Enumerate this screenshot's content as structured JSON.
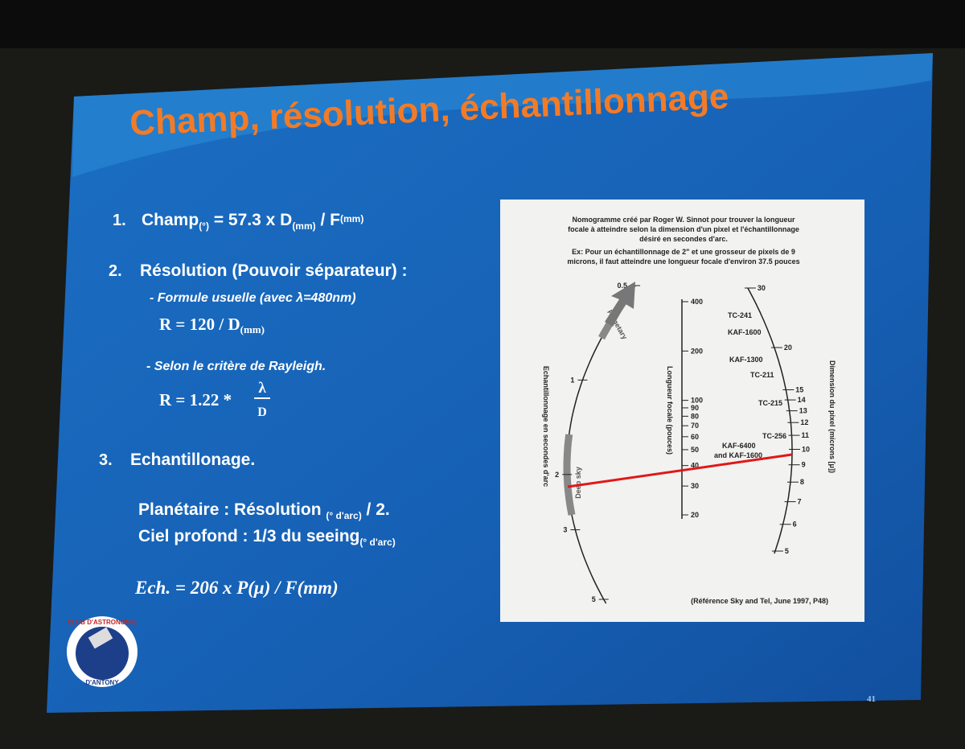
{
  "title": "Champ, résolution, échantillonnage",
  "items": [
    {
      "number": "1.",
      "formula": [
        {
          "text": "Champ",
          "sub": "(°)"
        },
        {
          "text": " = 57.3 x D",
          "sub": "(mm)"
        },
        {
          "text": " / F",
          "sub": "(mm)"
        }
      ]
    },
    {
      "number": "2.",
      "heading": "Résolution (Pouvoir séparateur) :",
      "methods": [
        {
          "label": "- Formule usuelle (avec λ=480nm)",
          "formula": {
            "text": "R = 120 / D",
            "sub": "(mm)"
          }
        },
        {
          "label": "- Selon le critère de Rayleigh.",
          "formula": {
            "text": "R = 1.22 *",
            "numerator": "λ",
            "denominator": "D"
          }
        }
      ]
    },
    {
      "number": "3.",
      "heading": "Echantillonage.",
      "lines": [
        [
          {
            "text": "Planétaire : Résolution ",
            "sub": "(° d'arc)"
          },
          {
            "text": " / 2."
          }
        ],
        [
          {
            "text": "Ciel profond : 1/3 du seeing",
            "sub": "(° d'arc)"
          }
        ]
      ],
      "equation": "Ech. = 206 x P(μ) / F(mm)"
    }
  ],
  "nomogram": {
    "caption": [
      "Nomogramme créé par Roger W. Sinnot pour trouver la longueur",
      "focale à atteindre selon la dimension d'un pixel et l'échantillonnage",
      "désiré en secondes d'arc.",
      "Ex: Pour un échantillonnage de 2\" et une grosseur de pixels de 9",
      "microns, il faut atteindre une longueur focale d'environ 37.5 pouces"
    ],
    "left_scale": {
      "label": "Echantillonnage en secondes d'arc",
      "ticks": [
        0.5,
        1,
        2,
        3,
        5
      ],
      "bands": [
        "Planetary",
        "Deep sky"
      ]
    },
    "middle_scale": {
      "label": "Longueur focale (pouces)",
      "ticks": [
        400,
        200,
        100,
        90,
        80,
        70,
        60,
        50,
        40,
        30,
        20
      ]
    },
    "right_scale": {
      "label": "Dimension du pixel (microns [μ])",
      "ticks": [
        30,
        20,
        15,
        14,
        13,
        12,
        11,
        10,
        9,
        8,
        7,
        6,
        5
      ],
      "sensors": [
        "TC-241",
        "KAF-1600",
        "KAF-1300",
        "TC-211",
        "TC-215",
        "TC-256",
        "KAF-6400",
        "and KAF-1600"
      ]
    },
    "reference": "(Référence Sky and Tel, June 1997, P48)"
  },
  "logo": {
    "top": "CLUB D'ASTRONOMIE",
    "bottom": "D'ANTONY"
  },
  "page_number": "41"
}
